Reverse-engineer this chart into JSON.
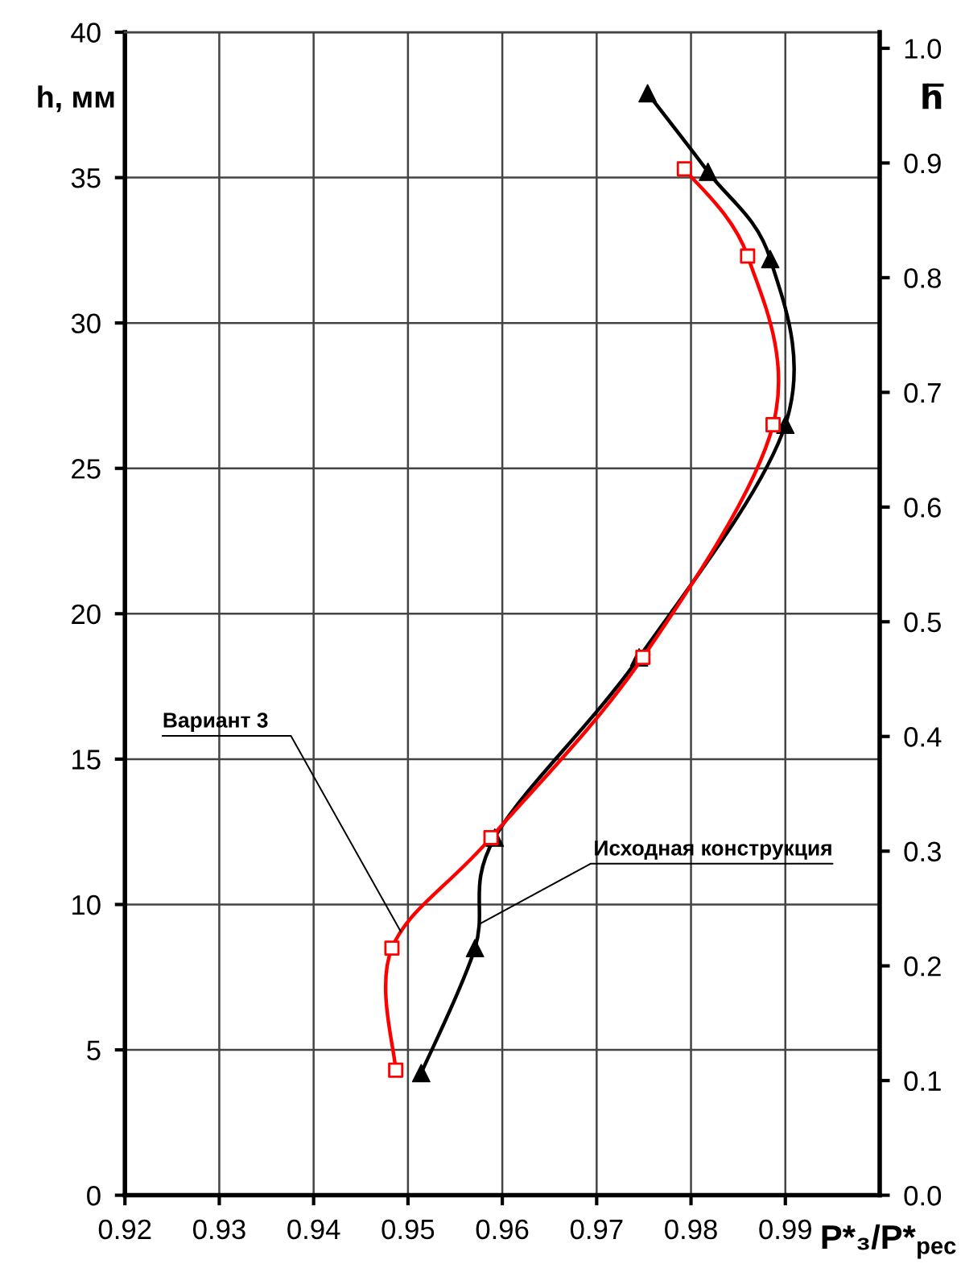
{
  "chart_data": {
    "type": "line",
    "xlabel": "P*₃/P*$_{рес}$",
    "ylabel": "h, мм",
    "y2label": "h̅",
    "xlim": [
      0.92,
      1.0
    ],
    "xticks": [
      0.92,
      0.93,
      0.94,
      0.95,
      0.96,
      0.97,
      0.98,
      0.99
    ],
    "ylim": [
      0,
      40
    ],
    "yticks": [
      0,
      5,
      10,
      15,
      20,
      25,
      30,
      35,
      40
    ],
    "y2lim": [
      0,
      1.014
    ],
    "y2ticks": [
      {
        "value": 0,
        "label": "0.0"
      },
      0.1,
      0.2,
      0.3,
      0.4,
      0.5,
      0.6,
      0.7,
      0.8,
      0.9,
      {
        "value": 1,
        "label": "1.0"
      }
    ],
    "grid": true,
    "series": [
      {
        "name": "Исходная конструкция",
        "color": "#000000",
        "marker": "triangle",
        "x": [
          0.9514,
          0.9571,
          0.9592,
          0.9745,
          0.99,
          0.9884,
          0.9818,
          0.9754
        ],
        "values": [
          4.2,
          8.5,
          12.3,
          18.5,
          26.5,
          32.2,
          35.2,
          37.9
        ]
      },
      {
        "name": "Вариант 3",
        "color": "#ff0000",
        "marker": "square",
        "x": [
          0.9487,
          0.9483,
          0.9588,
          0.9749,
          0.9887,
          0.986,
          0.9793
        ],
        "values": [
          4.3,
          8.5,
          12.3,
          18.5,
          26.5,
          32.3,
          35.3
        ]
      }
    ]
  }
}
